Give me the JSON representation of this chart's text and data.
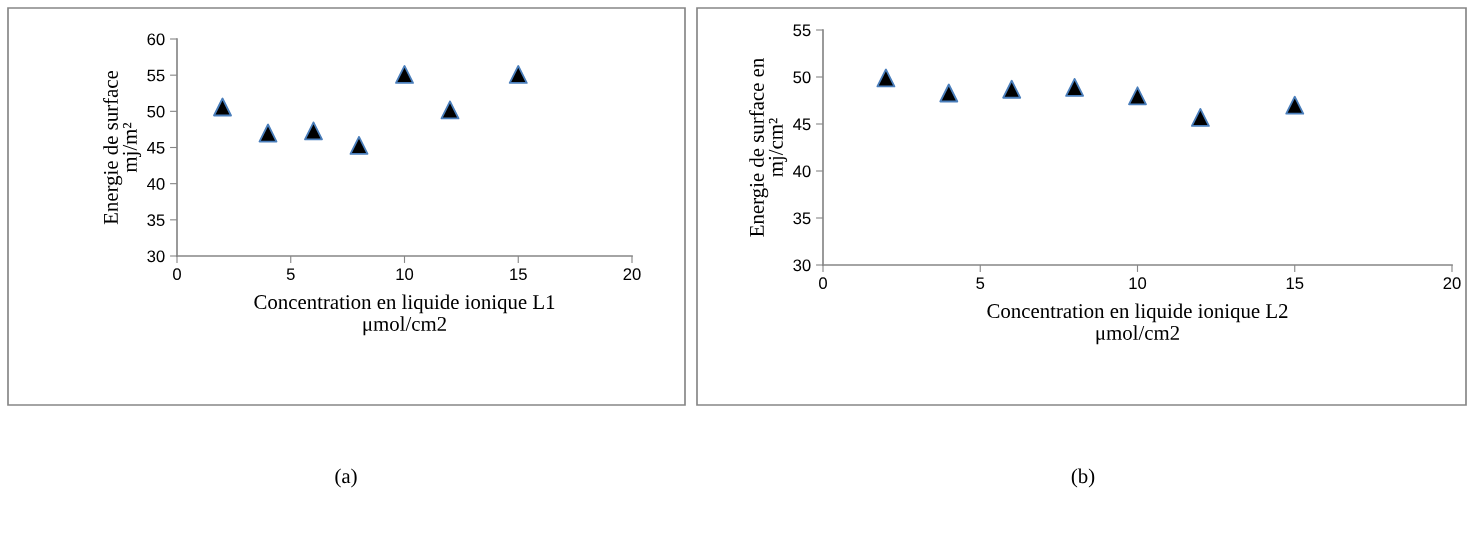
{
  "chart_data": [
    {
      "type": "scatter",
      "xlabel": "Concentration en liquide ionique L1\nμmol/cm2",
      "ylabel": "Energie de surface\nmj/m²",
      "annotations": [
        "(a)"
      ],
      "x": [
        2,
        4,
        6,
        8,
        10,
        12,
        15
      ],
      "marker": "triangle",
      "series": [
        {
          "color": "#000000",
          "values": [
            50.6,
            47.0,
            47.3,
            45.3,
            55.1,
            50.2,
            55.1
          ]
        }
      ],
      "xlim": [
        0,
        20
      ],
      "xticks": [
        0,
        5,
        10,
        15,
        20
      ],
      "ylim": [
        30,
        60
      ],
      "yticks": [
        30,
        35,
        40,
        45,
        50,
        55,
        60
      ],
      "grid": false,
      "legend": false
    },
    {
      "type": "scatter",
      "xlabel": "Concentration en liquide ionique L2\nμmol/cm2",
      "ylabel": "Energie de surface en\nmj/cm²",
      "annotations": [
        "(b)"
      ],
      "x": [
        2,
        4,
        6,
        8,
        10,
        12,
        15
      ],
      "marker": "triangle",
      "series": [
        {
          "color": "#000000",
          "values": [
            49.9,
            48.3,
            48.7,
            48.9,
            48.0,
            45.7,
            47.0
          ]
        }
      ],
      "xlim": [
        0,
        20
      ],
      "xticks": [
        0,
        5,
        10,
        15,
        20
      ],
      "ylim": [
        30,
        55
      ],
      "yticks": [
        30,
        35,
        40,
        45,
        50,
        55
      ],
      "grid": false,
      "legend": false
    }
  ]
}
